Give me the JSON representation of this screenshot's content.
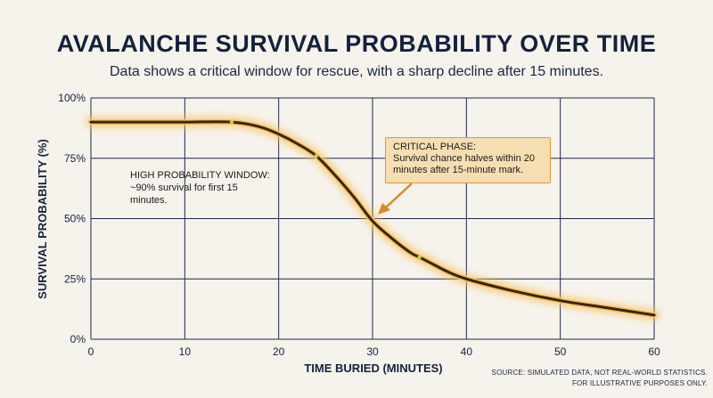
{
  "header": {
    "title": "AVALANCHE SURVIVAL PROBABILITY OVER TIME",
    "subtitle": "Data shows a critical window for rescue, with a sharp decline after 15 minutes."
  },
  "annotations": {
    "high_probability": "HIGH PROBABILITY WINDOW: ~90% survival for first 15 minutes.",
    "critical_phase_title": "CRITICAL PHASE:",
    "critical_phase_body": "Survival chance halves within 20 minutes after 15-minute mark."
  },
  "source_note": {
    "line1": "SOURCE: SIMULATED DATA, NOT REAL-WORLD STATISTICS.",
    "line2": "FOR ILLUSTRATIVE PURPOSES ONLY."
  },
  "colors": {
    "curve": "#3a2410",
    "glow": "#f6c15a",
    "grid": "#1b2a4a",
    "axis_text": "#14213d",
    "callout_border": "#e09a2e",
    "callout_fill": "#f7deb2"
  },
  "chart_data": {
    "type": "line",
    "title": "AVALANCHE SURVIVAL PROBABILITY OVER TIME",
    "subtitle": "Data shows a critical window for rescue, with a sharp decline after 15 minutes.",
    "xlabel": "TIME BURIED (MINUTES)",
    "ylabel": "SURVIVAL PROBABILITY (%)",
    "xlim": [
      0,
      60
    ],
    "ylim": [
      0,
      100
    ],
    "x_ticks": [
      0,
      10,
      20,
      30,
      40,
      50,
      60
    ],
    "y_ticks": [
      0,
      25,
      50,
      75,
      100
    ],
    "y_tick_labels": [
      "0%",
      "25%",
      "50%",
      "75%",
      "100%"
    ],
    "grid": true,
    "legend": "none",
    "series": [
      {
        "x": [
          0,
          5,
          10,
          15,
          18,
          20,
          22,
          24,
          26,
          28,
          30,
          32,
          34,
          35,
          36,
          38,
          40,
          45,
          50,
          55,
          60
        ],
        "values": [
          90,
          90,
          90,
          90,
          88,
          85,
          81,
          76,
          68,
          59,
          49,
          42,
          36,
          34,
          32,
          28,
          25,
          20,
          16,
          13,
          10
        ]
      }
    ],
    "markers": [
      {
        "x": 15,
        "y": 90
      },
      {
        "x": 24,
        "y": 76
      },
      {
        "x": 35,
        "y": 34
      }
    ]
  }
}
